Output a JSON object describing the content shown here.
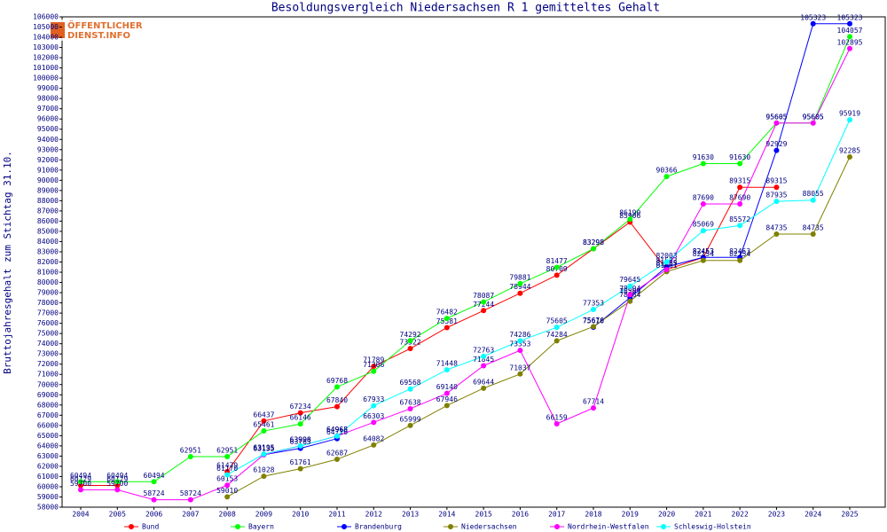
{
  "chart_data": {
    "type": "line",
    "title": "Besoldungsvergleich Niedersachsen R 1 gemitteltes Gehalt",
    "y_label": "Bruttojahresgehalt zum Stichtag 31.10.",
    "logo": [
      "ÖFFENTLICHER",
      "DIENST.INFO"
    ],
    "categories": [
      "2004",
      "2005",
      "2006",
      "2007",
      "2008",
      "2009",
      "2010",
      "2011",
      "2012",
      "2013",
      "2014",
      "2015",
      "2016",
      "2017",
      "2018",
      "2019",
      "2020",
      "2021",
      "2022",
      "2023",
      "2024",
      "2025"
    ],
    "ylim": [
      58000,
      106000
    ],
    "yticks": [
      58000,
      59000,
      60000,
      61000,
      62000,
      63000,
      64000,
      65000,
      66000,
      67000,
      68000,
      69000,
      70000,
      71000,
      72000,
      73000,
      74000,
      75000,
      76000,
      77000,
      78000,
      79000,
      80000,
      81000,
      82000,
      83000,
      84000,
      85000,
      86000,
      87000,
      88000,
      89000,
      90000,
      91000,
      92000,
      93000,
      94000,
      95000,
      96000,
      97000,
      98000,
      99000,
      100000,
      101000,
      102000,
      103000,
      104000,
      105000,
      106000
    ],
    "series": [
      {
        "name": "Bund",
        "color": "#ff0000",
        "values": [
          60129,
          60129,
          null,
          null,
          61479,
          66437,
          67234,
          67840,
          71789,
          73522,
          75581,
          77244,
          78944,
          80709,
          83298,
          85906,
          81255,
          82453,
          89315,
          89315,
          null,
          null
        ]
      },
      {
        "name": "Bayern",
        "color": "#00ff00",
        "values": [
          60494,
          60494,
          60494,
          62951,
          62951,
          65461,
          66146,
          69768,
          71306,
          74292,
          76482,
          78087,
          79881,
          81477,
          83298,
          86190,
          90366,
          91630,
          91630,
          95605,
          95605,
          104057
        ]
      },
      {
        "name": "Brandenburg",
        "color": "#0000ff",
        "values": [
          null,
          null,
          null,
          null,
          null,
          63135,
          63763,
          64710,
          null,
          null,
          null,
          null,
          null,
          null,
          75610,
          78509,
          81533,
          82453,
          82453,
          92929,
          105323,
          105323
        ]
      },
      {
        "name": "Niedersachsen",
        "color": "#808000",
        "values": [
          null,
          null,
          null,
          null,
          59010,
          61028,
          61761,
          62687,
          64082,
          65999,
          67946,
          69644,
          71037,
          74284,
          75676,
          78164,
          81061,
          82154,
          82154,
          84735,
          84735,
          92285
        ]
      },
      {
        "name": "Nordrhein-Westfalen",
        "color": "#ff00ff",
        "values": [
          59700,
          59700,
          58724,
          58724,
          60153,
          63135,
          63996,
          64968,
          66303,
          67638,
          69140,
          71845,
          73353,
          66159,
          67714,
          78804,
          81255,
          87690,
          87690,
          95605,
          95605,
          102895
        ]
      },
      {
        "name": "Schleswig-Holstein",
        "color": "#00ffff",
        "values": [
          null,
          null,
          null,
          null,
          61170,
          63195,
          63998,
          64968,
          67933,
          69568,
          71448,
          72763,
          74286,
          75605,
          77353,
          79645,
          82003,
          85069,
          85572,
          87935,
          88055,
          95919
        ]
      }
    ]
  }
}
